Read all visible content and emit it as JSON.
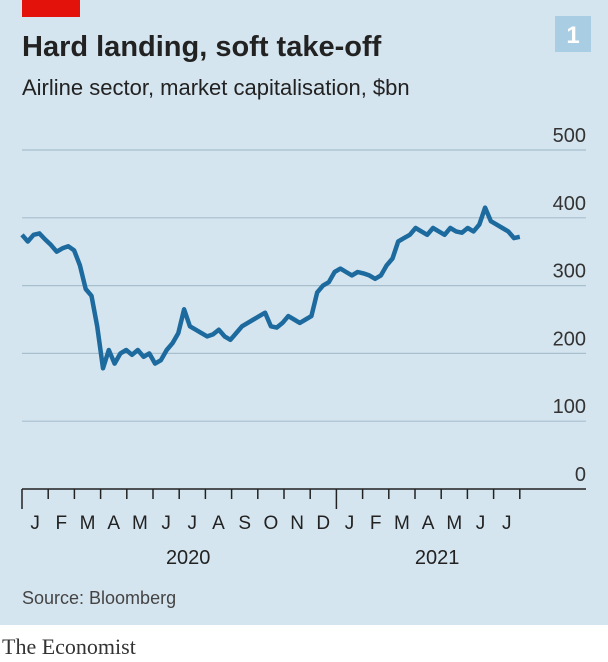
{
  "badge": "1",
  "source": "Source: Bloomberg",
  "brand": "The Economist",
  "chart_data": {
    "type": "line",
    "title": "Hard landing, soft take-off",
    "subtitle": "Airline sector, market capitalisation, $bn",
    "months": [
      "J",
      "F",
      "M",
      "A",
      "M",
      "J",
      "J",
      "A",
      "S",
      "O",
      "N",
      "D",
      "J",
      "F",
      "M",
      "A",
      "M",
      "J",
      "J"
    ],
    "years": [
      "2020",
      "2021"
    ],
    "ylim": [
      0,
      500
    ],
    "yticks": [
      0,
      100,
      200,
      300,
      400,
      500
    ],
    "grid": true,
    "series": [
      {
        "color": "#1d6a9e",
        "values": [
          375,
          365,
          375,
          377,
          368,
          360,
          350,
          355,
          358,
          352,
          330,
          295,
          285,
          240,
          178,
          205,
          185,
          200,
          205,
          198,
          205,
          195,
          200,
          185,
          190,
          205,
          215,
          230,
          265,
          240,
          235,
          230,
          225,
          228,
          235,
          225,
          220,
          230,
          240,
          245,
          250,
          255,
          260,
          240,
          238,
          245,
          255,
          250,
          245,
          250,
          255,
          290,
          300,
          305,
          320,
          325,
          320,
          315,
          320,
          318,
          315,
          310,
          315,
          330,
          340,
          365,
          370,
          375,
          385,
          380,
          375,
          385,
          380,
          375,
          385,
          380,
          378,
          385,
          380,
          390,
          415,
          395,
          390,
          385,
          380,
          370,
          372
        ]
      }
    ]
  }
}
